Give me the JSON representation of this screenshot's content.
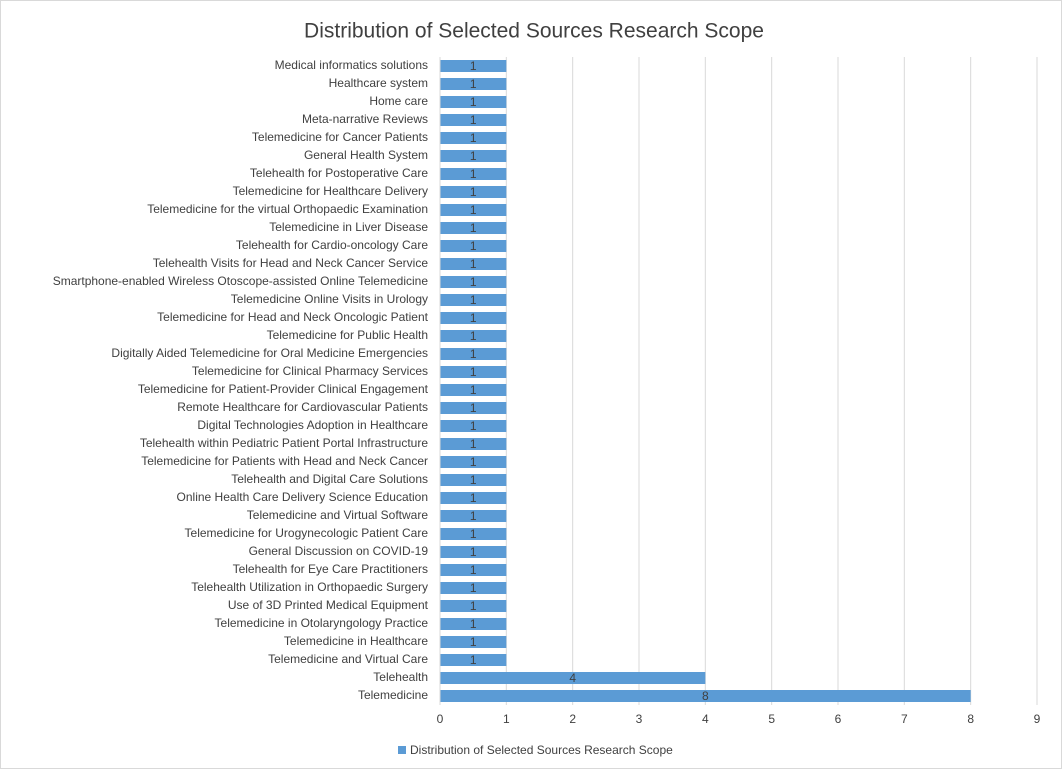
{
  "chart_data": {
    "type": "barh",
    "title": "Distribution of Selected Sources Research Scope",
    "categories": [
      "Medical informatics solutions",
      "Healthcare system",
      "Home care",
      "Meta-narrative Reviews",
      "Telemedicine for Cancer Patients",
      "General Health System",
      "Telehealth for Postoperative Care",
      "Telemedicine for Healthcare Delivery",
      "Telemedicine for the virtual Orthopaedic Examination",
      "Telemedicine in Liver Disease",
      "Telehealth for Cardio-oncology Care",
      "Telehealth Visits for Head and Neck Cancer Service",
      "Smartphone-enabled Wireless Otoscope-assisted Online Telemedicine",
      "Telemedicine Online Visits in Urology",
      "Telemedicine for Head and Neck Oncologic Patient",
      "Telemedicine for Public Health",
      "Digitally Aided Telemedicine for Oral Medicine Emergencies",
      "Telemedicine for Clinical Pharmacy Services",
      "Telemedicine for Patient-Provider Clinical Engagement",
      "Remote Healthcare for Cardiovascular Patients",
      "Digital Technologies Adoption in Healthcare",
      "Telehealth within Pediatric Patient Portal Infrastructure",
      "Telemedicine for Patients with Head and Neck Cancer",
      "Telehealth and Digital Care Solutions",
      "Online Health Care Delivery Science Education",
      "Telemedicine and Virtual Software",
      "Telemedicine for Urogynecologic Patient Care",
      "General Discussion on COVID-19",
      "Telehealth for Eye Care Practitioners",
      "Telehealth Utilization in Orthopaedic Surgery",
      "Use of 3D Printed Medical Equipment",
      "Telemedicine in Otolaryngology Practice",
      "Telemedicine in Healthcare",
      "Telemedicine and Virtual Care",
      "Telehealth",
      "Telemedicine"
    ],
    "series": [
      {
        "name": "Distribution of Selected Sources Research Scope",
        "color": "#5b9bd5",
        "values": [
          1,
          1,
          1,
          1,
          1,
          1,
          1,
          1,
          1,
          1,
          1,
          1,
          1,
          1,
          1,
          1,
          1,
          1,
          1,
          1,
          1,
          1,
          1,
          1,
          1,
          1,
          1,
          1,
          1,
          1,
          1,
          1,
          1,
          1,
          4,
          8
        ]
      }
    ],
    "xlim": [
      0,
      9
    ],
    "xticks": [
      0,
      1,
      2,
      3,
      4,
      5,
      6,
      7,
      8,
      9
    ],
    "grid": true,
    "legend": "bottom"
  }
}
